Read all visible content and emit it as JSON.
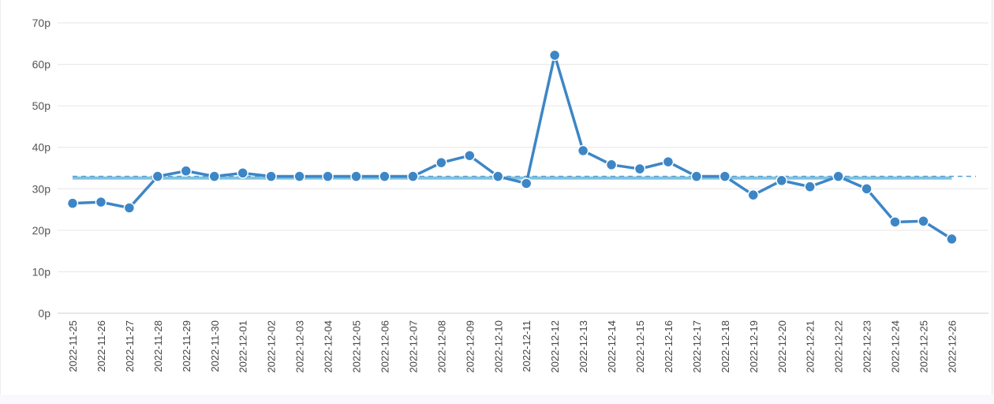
{
  "chart_data": {
    "type": "line",
    "title": "",
    "xlabel": "",
    "ylabel": "",
    "y_ticks": [
      "0p",
      "10p",
      "20p",
      "30p",
      "40p",
      "50p",
      "60p",
      "70p"
    ],
    "ylim": [
      0,
      70
    ],
    "grid": true,
    "legend": "none",
    "x": [
      "2022-11-25",
      "2022-11-26",
      "2022-11-27",
      "2022-11-28",
      "2022-11-29",
      "2022-11-30",
      "2022-12-01",
      "2022-12-02",
      "2022-12-03",
      "2022-12-04",
      "2022-12-05",
      "2022-12-06",
      "2022-12-07",
      "2022-12-08",
      "2022-12-09",
      "2022-12-10",
      "2022-12-11",
      "2022-12-12",
      "2022-12-13",
      "2022-12-14",
      "2022-12-15",
      "2022-12-16",
      "2022-12-17",
      "2022-12-18",
      "2022-12-19",
      "2022-12-20",
      "2022-12-21",
      "2022-12-22",
      "2022-12-23",
      "2022-12-24",
      "2022-12-25",
      "2022-12-26"
    ],
    "series": [
      {
        "values": [
          26.5,
          26.8,
          25.4,
          33.0,
          34.3,
          33.0,
          33.8,
          33.0,
          33.0,
          33.0,
          33.0,
          33.0,
          33.0,
          36.3,
          38.0,
          33.0,
          31.3,
          62.2,
          39.2,
          35.8,
          34.8,
          36.5,
          33.0,
          33.0,
          28.5,
          32.0,
          30.5,
          33.0,
          30.0,
          22.0,
          22.2,
          17.9
        ],
        "color": "#3d86c6"
      }
    ],
    "reference_lines": [
      {
        "value": 32.6,
        "style": "solid",
        "color": "#7cc3e0"
      },
      {
        "value": 33.0,
        "style": "dashed",
        "color": "#5a9fd0"
      }
    ]
  }
}
